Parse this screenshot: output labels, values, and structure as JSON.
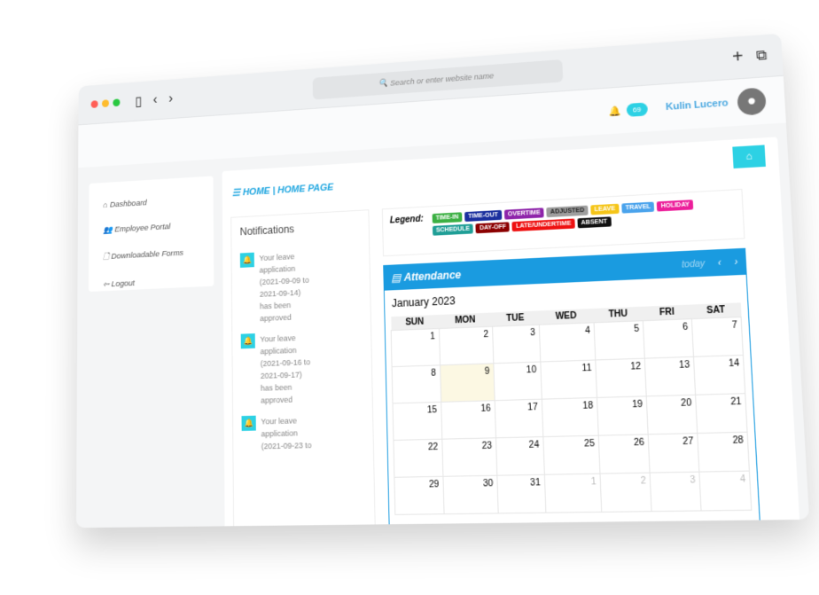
{
  "browser": {
    "search_placeholder": "Search or enter website name"
  },
  "header": {
    "notification_count": "69",
    "user_name": "Kulin Lucero"
  },
  "sidebar": {
    "items": [
      {
        "label": "Dashboard",
        "icon": "home-icon"
      },
      {
        "label": "Employee Portal",
        "icon": "users-icon"
      },
      {
        "label": "Downloadable Forms",
        "icon": "file-icon"
      },
      {
        "label": "Logout",
        "icon": "logout-icon"
      }
    ]
  },
  "page": {
    "title": "HOME | HOME PAGE"
  },
  "notifications": {
    "title": "Notifications",
    "items": [
      "Your leave application (2021-09-09 to 2021-09-14) has been approved",
      "Your leave application (2021-09-16 to 2021-09-17) has been approved",
      "Your leave application (2021-09-23 to"
    ]
  },
  "legend": {
    "label": "Legend:",
    "items": [
      {
        "label": "TIME-IN",
        "color": "#3cb043"
      },
      {
        "label": "TIME-OUT",
        "color": "#1a2f9e"
      },
      {
        "label": "OVERTIME",
        "color": "#8e24aa"
      },
      {
        "label": "ADJUSTED",
        "color": "#9e9e9e"
      },
      {
        "label": "LEAVE",
        "color": "#f5c518"
      },
      {
        "label": "TRAVEL",
        "color": "#4aa3ec"
      },
      {
        "label": "HOLIDAY",
        "color": "#ec1e9a"
      },
      {
        "label": "SCHEDULE",
        "color": "#1f9e96"
      },
      {
        "label": "DAY-OFF",
        "color": "#8b0000"
      },
      {
        "label": "LATE/UNDERTIME",
        "color": "#ee1111"
      },
      {
        "label": "ABSENT",
        "color": "#111111"
      }
    ]
  },
  "calendar": {
    "title": "Attendance",
    "today": "today",
    "month": "January 2023",
    "days": [
      "SUN",
      "MON",
      "TUE",
      "WED",
      "THU",
      "FRI",
      "SAT"
    ],
    "weeks": [
      [
        "1",
        "2",
        "3",
        "4",
        "5",
        "6",
        "7"
      ],
      [
        "8",
        "9",
        "10",
        "11",
        "12",
        "13",
        "14"
      ],
      [
        "15",
        "16",
        "17",
        "18",
        "19",
        "20",
        "21"
      ],
      [
        "22",
        "23",
        "24",
        "25",
        "26",
        "27",
        "28"
      ],
      [
        "29",
        "30",
        "31",
        "1",
        "2",
        "3",
        "4"
      ]
    ]
  }
}
